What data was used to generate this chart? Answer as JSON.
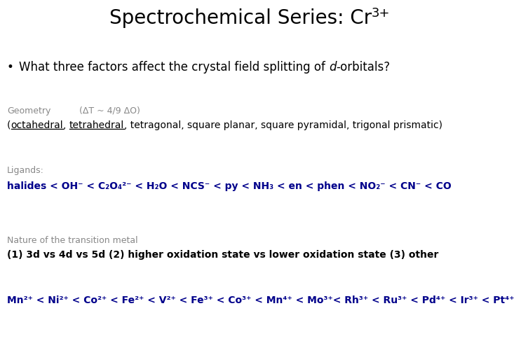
{
  "bg_color": "#ffffff",
  "title": "Spectrochemical Series: Cr",
  "title_superscript": "3+",
  "bullet_normal": "What three factors affect the crystal field splitting of ",
  "bullet_italic": "d",
  "bullet_end": "-orbitals?",
  "geometry_label": "Geometry",
  "geometry_formula": "(ΔT ~ 4/9 ΔO)",
  "geometry_list_parts": [
    "(",
    "octahedral",
    ", ",
    "tetrahedral",
    ", tetragonal, square planar, square pyramidal, trigonal prismatic)"
  ],
  "geometry_underline": [
    false,
    true,
    false,
    true,
    false
  ],
  "ligands_label": "Ligands:",
  "ligands_series": "halides < OH⁻ < C₂O₄²⁻ < H₂O < NCS⁻ < py < NH₃ < en < phen < NO₂⁻ < CN⁻ < CO",
  "nature_label": "Nature of the transition metal",
  "nature_text": "(1) 3d vs 4d vs 5d (2) higher oxidation state vs lower oxidation state (3) other",
  "metals_series": "Mn²⁺ < Ni²⁺ < Co²⁺ < Fe²⁺ < V²⁺ < Fe³⁺ < Co³⁺ < Mn⁴⁺ < Mo³⁺< Rh³⁺ < Ru³⁺ < Pd⁴⁺ < Ir³⁺ < Pt⁴⁺",
  "blue_color": "#00008B",
  "black_color": "#000000",
  "gray_color": "#888888",
  "title_fontsize": 20,
  "title_super_fontsize": 13,
  "bullet_fontsize": 12,
  "geo_label_fontsize": 9,
  "geo_text_fontsize": 10,
  "ligand_label_fontsize": 9,
  "ligand_fontsize": 10,
  "nature_label_fontsize": 9,
  "nature_fontsize": 10,
  "metals_fontsize": 10
}
